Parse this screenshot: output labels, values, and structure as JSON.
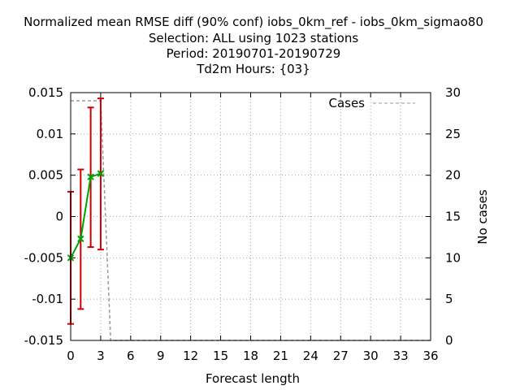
{
  "chart_data": {
    "type": "line",
    "title_lines": [
      "Normalized mean RMSE diff (90% conf) iobs_0km_ref - iobs_0km_sigmao80",
      "Selection: ALL using  1023 stations",
      "Period: 20190701-20190729",
      "Td2m   Hours: {03}"
    ],
    "xlabel": "Forecast length",
    "ylabel": "",
    "y2label": "No cases",
    "xlim": [
      0,
      36
    ],
    "ylim": [
      -0.015,
      0.015
    ],
    "y2lim": [
      0,
      30
    ],
    "xticks": [
      0,
      3,
      6,
      9,
      12,
      15,
      18,
      21,
      24,
      27,
      30,
      33,
      36
    ],
    "yticks": [
      -0.015,
      -0.01,
      -0.005,
      0,
      0.005,
      0.01,
      0.015
    ],
    "ytick_labels": [
      "-0.015",
      "-0.01",
      "-0.005",
      "0",
      "0.005",
      "0.01",
      "0.015"
    ],
    "y2ticks": [
      0,
      5,
      10,
      15,
      20,
      25,
      30
    ],
    "grid": true,
    "legend": {
      "placement": "top-right",
      "entries": [
        "Cases"
      ]
    },
    "series": [
      {
        "name": "",
        "color": "#00a000",
        "x": [
          0,
          1,
          2,
          3
        ],
        "y": [
          -0.005,
          -0.0027,
          0.0048,
          0.0052
        ],
        "err_low": [
          -0.013,
          -0.0112,
          -0.0037,
          -0.004
        ],
        "err_high": [
          0.003,
          0.0057,
          0.0132,
          0.0143
        ],
        "err_color": "#cc0000"
      },
      {
        "name": "Cases",
        "color": "#999999",
        "dashed": true,
        "axis": "y2",
        "x": [
          0,
          1,
          2,
          3,
          4,
          5,
          6,
          9,
          12,
          15,
          18,
          21,
          24,
          27,
          30,
          33,
          36
        ],
        "y": [
          29,
          29,
          29,
          29,
          0,
          0,
          0,
          0,
          0,
          0,
          0,
          0,
          0,
          0,
          0,
          0,
          0
        ]
      }
    ]
  }
}
